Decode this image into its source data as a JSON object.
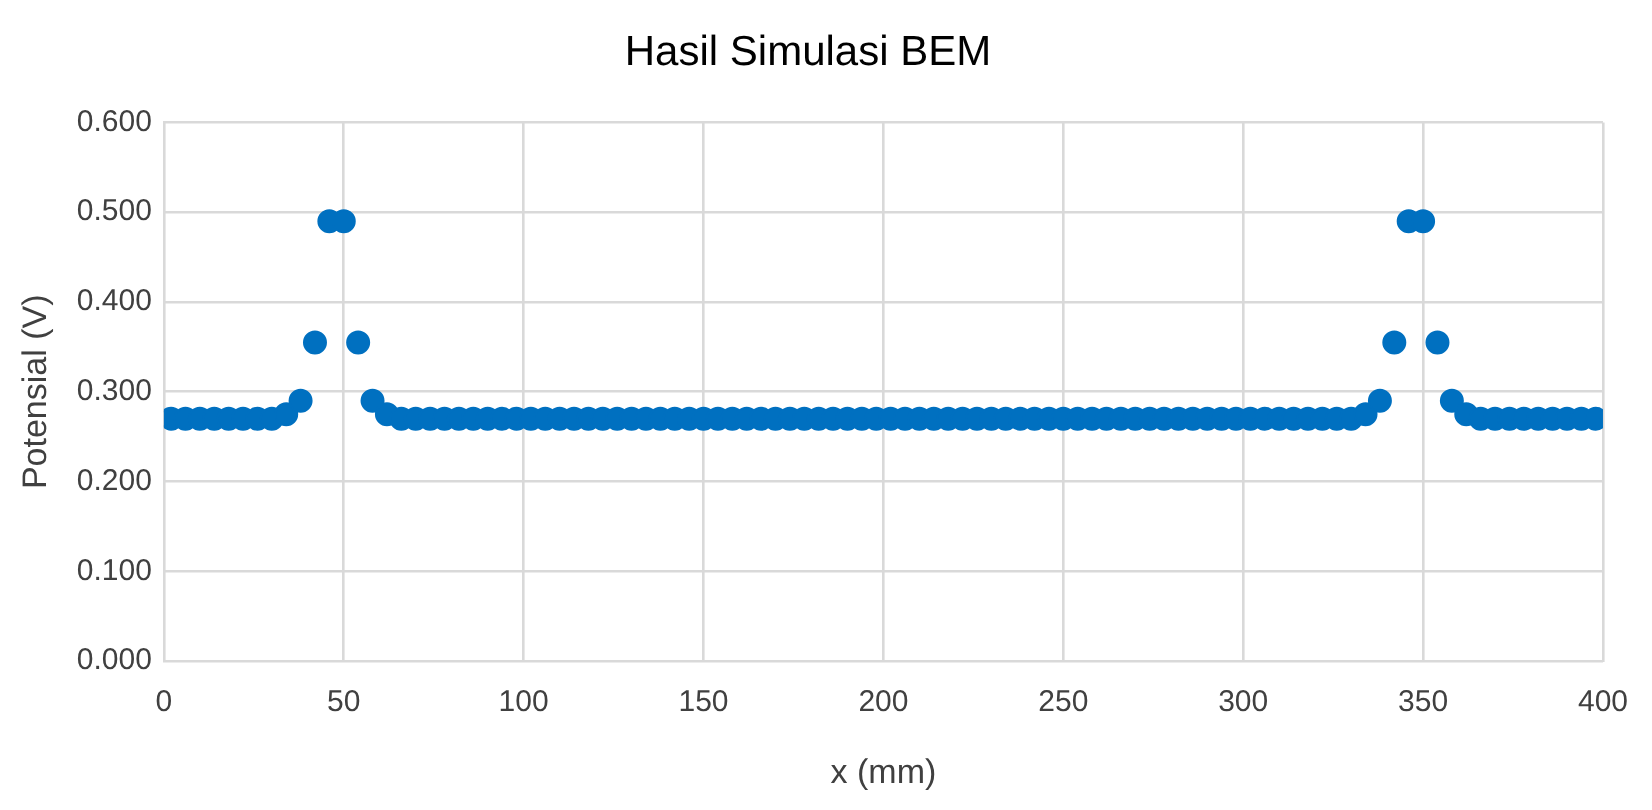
{
  "chart_data": {
    "type": "scatter",
    "title": "Hasil Simulasi BEM",
    "xlabel": "x (mm)",
    "ylabel": "Potensial (V)",
    "x": [
      2,
      6,
      10,
      14,
      18,
      22,
      26,
      30,
      34,
      38,
      42,
      46,
      50,
      54,
      58,
      62,
      66,
      70,
      74,
      78,
      82,
      86,
      90,
      94,
      98,
      102,
      106,
      110,
      114,
      118,
      122,
      126,
      130,
      134,
      138,
      142,
      146,
      150,
      154,
      158,
      162,
      166,
      170,
      174,
      178,
      182,
      186,
      190,
      194,
      198,
      202,
      206,
      210,
      214,
      218,
      222,
      226,
      230,
      234,
      238,
      242,
      246,
      250,
      254,
      258,
      262,
      266,
      270,
      274,
      278,
      282,
      286,
      290,
      294,
      298,
      302,
      306,
      310,
      314,
      318,
      322,
      326,
      330,
      334,
      338,
      342,
      346,
      350,
      354,
      358,
      362,
      366,
      370,
      374,
      378,
      382,
      386,
      390,
      394,
      398
    ],
    "series": [
      {
        "color": "#0070c0",
        "values": [
          0.27,
          0.27,
          0.27,
          0.27,
          0.27,
          0.27,
          0.27,
          0.27,
          0.275,
          0.29,
          0.355,
          0.49,
          0.49,
          0.355,
          0.29,
          0.275,
          0.27,
          0.27,
          0.27,
          0.27,
          0.27,
          0.27,
          0.27,
          0.27,
          0.27,
          0.27,
          0.27,
          0.27,
          0.27,
          0.27,
          0.27,
          0.27,
          0.27,
          0.27,
          0.27,
          0.27,
          0.27,
          0.27,
          0.27,
          0.27,
          0.27,
          0.27,
          0.27,
          0.27,
          0.27,
          0.27,
          0.27,
          0.27,
          0.27,
          0.27,
          0.27,
          0.27,
          0.27,
          0.27,
          0.27,
          0.27,
          0.27,
          0.27,
          0.27,
          0.27,
          0.27,
          0.27,
          0.27,
          0.27,
          0.27,
          0.27,
          0.27,
          0.27,
          0.27,
          0.27,
          0.27,
          0.27,
          0.27,
          0.27,
          0.27,
          0.27,
          0.27,
          0.27,
          0.27,
          0.27,
          0.27,
          0.27,
          0.27,
          0.275,
          0.29,
          0.355,
          0.49,
          0.49,
          0.355,
          0.29,
          0.275,
          0.27,
          0.27,
          0.27,
          0.27,
          0.27,
          0.27,
          0.27,
          0.27,
          0.27
        ]
      }
    ],
    "xlim": [
      0,
      400
    ],
    "xticks": [
      0,
      50,
      100,
      150,
      200,
      250,
      300,
      350,
      400
    ],
    "ylim": [
      0,
      0.6
    ],
    "yticks": [
      {
        "value": 0,
        "label": "0.000"
      },
      {
        "value": 0.1,
        "label": "0.100"
      },
      {
        "value": 0.2,
        "label": "0.200"
      },
      {
        "value": 0.3,
        "label": "0.300"
      },
      {
        "value": 0.4,
        "label": "0.400"
      },
      {
        "value": 0.5,
        "label": "0.500"
      },
      {
        "value": 0.6,
        "label": "0.600"
      }
    ],
    "grid": true,
    "legend": false,
    "marker": "circle"
  }
}
